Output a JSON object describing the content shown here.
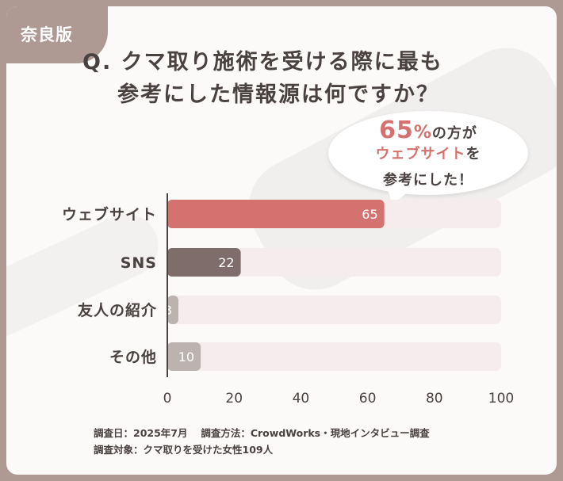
{
  "region_label": "奈良版",
  "title_line1": "Q. クマ取り施術を受ける際に最も",
  "title_line2": "参考にした情報源は何ですか？",
  "callout": {
    "value": "65",
    "percent": "%",
    "line1_suffix": "の方が",
    "highlight": "ウェブサイト",
    "line2_suffix": "を",
    "line3": "参考にした！"
  },
  "footnote_line1": "調査日：2025年7月　 調査方法：CrowdWorks・現地インタビュー調査",
  "footnote_line2": "調査対象：クマ取りを受けた女性109人",
  "colors": {
    "highlight": "#d4726f",
    "second": "#7f6d6c",
    "rest": "#bcb3b1",
    "track": "#f5eded",
    "axis": "#4a4240"
  },
  "chart_data": {
    "type": "bar",
    "orientation": "horizontal",
    "categories": [
      "ウェブサイト",
      "SNS",
      "友人の紹介",
      "その他"
    ],
    "values": [
      65,
      22,
      3,
      10
    ],
    "xlim": [
      0,
      100
    ],
    "xticks": [
      0,
      20,
      40,
      60,
      80,
      100
    ],
    "xlabel": "",
    "ylabel": "",
    "grid": false,
    "unit": "%"
  }
}
